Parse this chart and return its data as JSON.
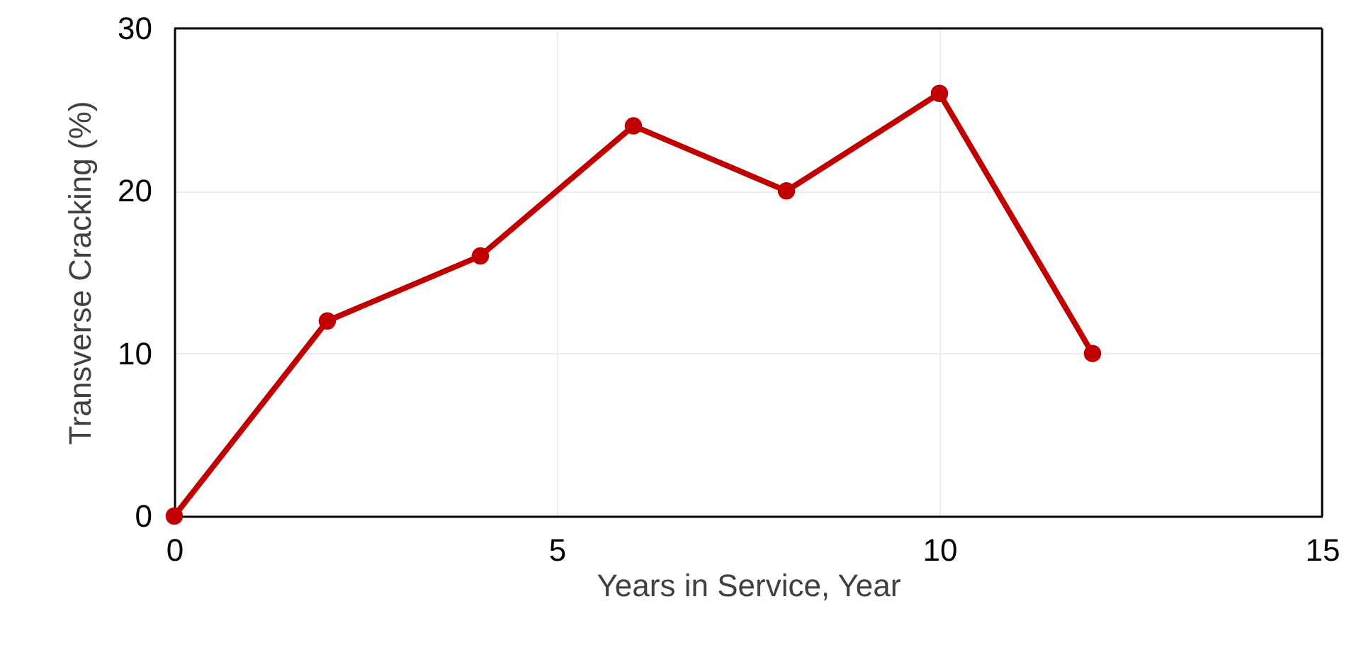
{
  "chart_data": {
    "type": "line",
    "xlabel": "Years in Service, Year",
    "ylabel": "Transverse Cracking (%)",
    "x": [
      0,
      2,
      4,
      6,
      8,
      10,
      12
    ],
    "series": [
      {
        "color": "#c00000",
        "values": [
          0,
          12,
          16,
          24,
          20,
          26,
          10
        ]
      }
    ],
    "xlim": [
      0,
      15
    ],
    "xticks": [
      0,
      5,
      10,
      15
    ],
    "ylim": [
      0,
      30
    ],
    "yticks": [
      0,
      10,
      20,
      30
    ],
    "grid": true,
    "marker": "circle",
    "line_style": "solid"
  }
}
